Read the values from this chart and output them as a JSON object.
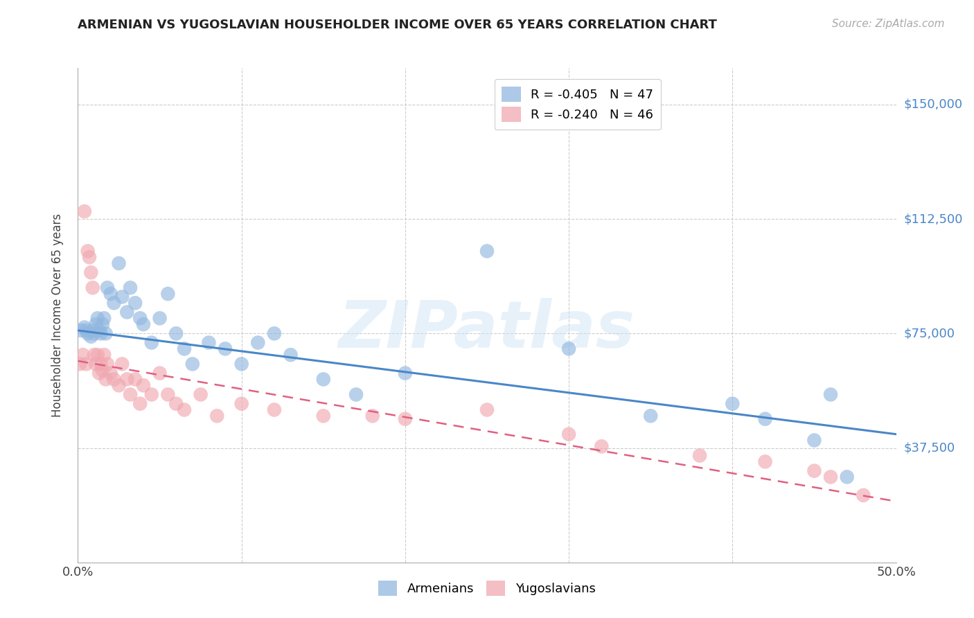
{
  "title": "ARMENIAN VS YUGOSLAVIAN HOUSEHOLDER INCOME OVER 65 YEARS CORRELATION CHART",
  "source": "Source: ZipAtlas.com",
  "ylabel": "Householder Income Over 65 years",
  "xlim": [
    0.0,
    0.5
  ],
  "ylim": [
    0,
    162000
  ],
  "ytick_vals": [
    37500,
    75000,
    112500,
    150000
  ],
  "ytick_labels": [
    "$37,500",
    "$75,000",
    "$112,500",
    "$150,000"
  ],
  "background_color": "#ffffff",
  "grid_color": "#cccccc",
  "blue_color": "#92b8e0",
  "pink_color": "#f0a8b0",
  "blue_line_color": "#4a86c8",
  "pink_line_color": "#e06080",
  "legend_R_armenian": "R = -0.405",
  "legend_N_armenian": "N = 47",
  "legend_R_yugoslav": "R = -0.240",
  "legend_N_yugoslav": "N = 46",
  "watermark": "ZIPatlas",
  "armenian_x": [
    0.002,
    0.004,
    0.005,
    0.006,
    0.008,
    0.009,
    0.01,
    0.011,
    0.012,
    0.013,
    0.014,
    0.015,
    0.016,
    0.017,
    0.018,
    0.02,
    0.022,
    0.025,
    0.027,
    0.03,
    0.032,
    0.035,
    0.038,
    0.04,
    0.045,
    0.05,
    0.055,
    0.06,
    0.065,
    0.07,
    0.08,
    0.09,
    0.1,
    0.11,
    0.12,
    0.13,
    0.15,
    0.17,
    0.2,
    0.25,
    0.3,
    0.35,
    0.4,
    0.42,
    0.45,
    0.46,
    0.47
  ],
  "armenian_y": [
    76000,
    77000,
    76000,
    75000,
    74000,
    76000,
    75000,
    78000,
    80000,
    76000,
    75000,
    78000,
    80000,
    75000,
    90000,
    88000,
    85000,
    98000,
    87000,
    82000,
    90000,
    85000,
    80000,
    78000,
    72000,
    80000,
    88000,
    75000,
    70000,
    65000,
    72000,
    70000,
    65000,
    72000,
    75000,
    68000,
    60000,
    55000,
    62000,
    102000,
    70000,
    48000,
    52000,
    47000,
    40000,
    55000,
    28000
  ],
  "yugoslav_x": [
    0.001,
    0.003,
    0.004,
    0.005,
    0.006,
    0.007,
    0.008,
    0.009,
    0.01,
    0.011,
    0.012,
    0.013,
    0.014,
    0.015,
    0.016,
    0.017,
    0.018,
    0.02,
    0.022,
    0.025,
    0.027,
    0.03,
    0.032,
    0.035,
    0.038,
    0.04,
    0.045,
    0.05,
    0.055,
    0.06,
    0.065,
    0.075,
    0.085,
    0.1,
    0.12,
    0.15,
    0.18,
    0.2,
    0.25,
    0.3,
    0.32,
    0.38,
    0.42,
    0.45,
    0.46,
    0.48
  ],
  "yugoslav_y": [
    65000,
    68000,
    115000,
    65000,
    102000,
    100000,
    95000,
    90000,
    68000,
    65000,
    68000,
    62000,
    65000,
    63000,
    68000,
    60000,
    65000,
    62000,
    60000,
    58000,
    65000,
    60000,
    55000,
    60000,
    52000,
    58000,
    55000,
    62000,
    55000,
    52000,
    50000,
    55000,
    48000,
    52000,
    50000,
    48000,
    48000,
    47000,
    50000,
    42000,
    38000,
    35000,
    33000,
    30000,
    28000,
    22000
  ],
  "arm_line_x": [
    0.0,
    0.5
  ],
  "arm_line_y": [
    76000,
    42000
  ],
  "yug_line_x": [
    0.0,
    0.5
  ],
  "yug_line_y": [
    66000,
    20000
  ]
}
